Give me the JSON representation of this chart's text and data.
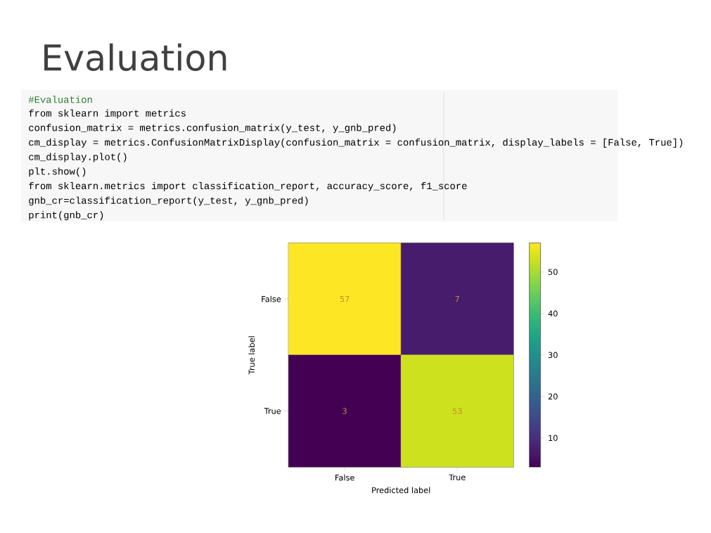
{
  "chart_data": {
    "type": "heatmap",
    "title": "Evaluation",
    "xlabel": "Predicted label",
    "ylabel": "True label",
    "categories": [
      "False",
      "True"
    ],
    "y_categories": [
      "False",
      "True"
    ],
    "cells": [
      [
        57,
        7
      ],
      [
        3,
        53
      ]
    ],
    "data_labels": true,
    "clim": [
      3,
      57
    ],
    "cticks": [
      10,
      20,
      30,
      40,
      50
    ],
    "annotations": [
      "#Evaluation",
      "from sklearn import metrics",
      "confusion_matrix = metrics.confusion_matrix(y_test, y_gnb_pred)",
      "cm_display = metrics.ConfusionMatrixDisplay(confusion_matrix = confusion_matrix, display_labels = [False, True])",
      "cm_display.plot()",
      "plt.show()",
      "from sklearn.metrics import classification_report, accuracy_score, f1_score",
      "gnb_cr=classification_report(y_test, y_gnb_pred)",
      "print(gnb_cr)"
    ]
  }
}
